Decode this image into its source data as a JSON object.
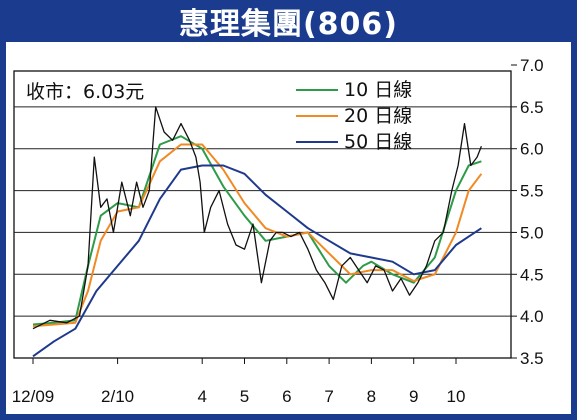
{
  "title": "惠理集團(806)",
  "chart_data": {
    "type": "line",
    "annotation": "收市：6.03元",
    "ylim": [
      3.5,
      7.0
    ],
    "y_ticks": [
      "7.0",
      "6.5",
      "6.0",
      "5.5",
      "5.0",
      "4.5",
      "4.0",
      "3.5"
    ],
    "y_tick_values": [
      7.0,
      6.5,
      6.0,
      5.5,
      5.0,
      4.5,
      4.0,
      3.5
    ],
    "x_ticks": [
      "12/09",
      "2/10",
      "4",
      "5",
      "6",
      "7",
      "8",
      "9",
      "10"
    ],
    "x_tick_pos": [
      0,
      2,
      4,
      5,
      6,
      7,
      8,
      9,
      10
    ],
    "xlim": [
      -0.5,
      10.7
    ],
    "grid": true,
    "legend_position": "top-center",
    "series": [
      {
        "name": "10 日線",
        "color": "#2e9b48",
        "x": [
          0,
          0.5,
          1,
          1.3,
          1.6,
          2,
          2.5,
          3,
          3.5,
          4,
          4.5,
          5,
          5.5,
          6,
          6.5,
          7,
          7.4,
          7.8,
          8,
          8.5,
          9,
          9.5,
          10,
          10.3,
          10.6
        ],
        "y": [
          3.9,
          3.92,
          3.95,
          4.6,
          5.2,
          5.35,
          5.3,
          6.05,
          6.15,
          6.0,
          5.55,
          5.2,
          4.9,
          4.95,
          5.0,
          4.6,
          4.4,
          4.6,
          4.65,
          4.5,
          4.4,
          4.7,
          5.5,
          5.8,
          5.85
        ]
      },
      {
        "name": "20 日線",
        "color": "#f08a24",
        "x": [
          0,
          0.5,
          1,
          1.3,
          1.6,
          2,
          2.5,
          3,
          3.5,
          4,
          4.5,
          5,
          5.5,
          6,
          6.5,
          7,
          7.5,
          8,
          8.5,
          9,
          9.5,
          10,
          10.3,
          10.6
        ],
        "y": [
          3.88,
          3.9,
          3.92,
          4.3,
          4.9,
          5.25,
          5.3,
          5.85,
          6.05,
          6.05,
          5.75,
          5.35,
          5.05,
          4.95,
          5.0,
          4.75,
          4.5,
          4.55,
          4.55,
          4.42,
          4.5,
          5.0,
          5.5,
          5.7
        ]
      },
      {
        "name": "50 日線",
        "color": "#1f3a8c",
        "x": [
          0,
          0.5,
          1,
          1.5,
          2,
          2.5,
          3,
          3.5,
          4,
          4.5,
          5,
          5.5,
          6,
          6.5,
          7,
          7.5,
          8,
          8.5,
          9,
          9.5,
          10,
          10.3,
          10.6
        ],
        "y": [
          3.52,
          3.7,
          3.85,
          4.3,
          4.6,
          4.9,
          5.4,
          5.75,
          5.8,
          5.8,
          5.7,
          5.45,
          5.25,
          5.05,
          4.9,
          4.75,
          4.7,
          4.65,
          4.5,
          4.55,
          4.85,
          4.95,
          5.05
        ]
      },
      {
        "name": "price",
        "color": "#111111",
        "x": [
          0,
          0.4,
          0.8,
          1.1,
          1.3,
          1.45,
          1.6,
          1.75,
          1.9,
          2.1,
          2.3,
          2.45,
          2.6,
          2.75,
          2.9,
          3.1,
          3.3,
          3.5,
          3.7,
          3.85,
          3.95,
          4.05,
          4.2,
          4.4,
          4.6,
          4.8,
          5,
          5.2,
          5.4,
          5.6,
          5.75,
          5.9,
          6.1,
          6.3,
          6.5,
          6.7,
          6.9,
          7.1,
          7.3,
          7.5,
          7.7,
          7.9,
          8.1,
          8.3,
          8.5,
          8.7,
          8.9,
          9.1,
          9.3,
          9.5,
          9.7,
          9.9,
          10.05,
          10.2,
          10.35,
          10.5,
          10.6
        ],
        "y": [
          3.85,
          3.95,
          3.92,
          4.0,
          4.6,
          5.9,
          5.3,
          5.4,
          5.0,
          5.6,
          5.2,
          5.6,
          5.3,
          5.5,
          6.5,
          6.2,
          6.1,
          6.3,
          6.1,
          5.9,
          5.6,
          5.0,
          5.3,
          5.5,
          5.1,
          4.85,
          4.8,
          5.1,
          4.4,
          4.9,
          5.0,
          5.0,
          4.95,
          5.0,
          4.8,
          4.55,
          4.4,
          4.2,
          4.6,
          4.7,
          4.55,
          4.4,
          4.6,
          4.55,
          4.3,
          4.45,
          4.25,
          4.4,
          4.6,
          4.9,
          5.0,
          5.5,
          5.8,
          6.3,
          5.8,
          5.9,
          6.03
        ]
      }
    ]
  }
}
